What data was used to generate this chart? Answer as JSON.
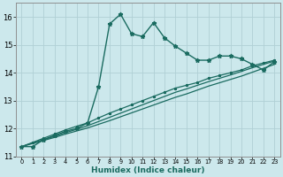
{
  "xlabel": "Humidex (Indice chaleur)",
  "bg_color": "#cce8ec",
  "grid_color": "#b0d0d5",
  "line_color": "#1a6b60",
  "xlim": [
    -0.5,
    23.5
  ],
  "ylim": [
    11,
    16.5
  ],
  "yticks": [
    11,
    12,
    13,
    14,
    15,
    16
  ],
  "xticks": [
    0,
    1,
    2,
    3,
    4,
    5,
    6,
    7,
    8,
    9,
    10,
    11,
    12,
    13,
    14,
    15,
    16,
    17,
    18,
    19,
    20,
    21,
    22,
    23
  ],
  "lines": [
    {
      "x": [
        0,
        1,
        2,
        3,
        4,
        5,
        6,
        7,
        8,
        9,
        10,
        11,
        12,
        13,
        14,
        15,
        16,
        17,
        18,
        19,
        20,
        21,
        22,
        23
      ],
      "y": [
        11.35,
        11.35,
        11.6,
        11.75,
        11.9,
        12.0,
        12.2,
        13.5,
        15.75,
        16.1,
        15.4,
        15.3,
        15.8,
        15.25,
        14.95,
        14.7,
        14.45,
        14.45,
        14.6,
        14.6,
        14.5,
        14.3,
        14.1,
        14.4
      ],
      "marker": "*",
      "markersize": 3.5,
      "lw": 1.0
    },
    {
      "x": [
        0,
        1,
        2,
        3,
        4,
        5,
        6,
        7,
        8,
        9,
        10,
        11,
        12,
        13,
        14,
        15,
        16,
        17,
        18,
        19,
        20,
        21,
        22,
        23
      ],
      "y": [
        11.35,
        11.5,
        11.65,
        11.8,
        11.95,
        12.08,
        12.2,
        12.38,
        12.55,
        12.7,
        12.85,
        13.0,
        13.15,
        13.3,
        13.45,
        13.55,
        13.65,
        13.8,
        13.9,
        14.0,
        14.1,
        14.25,
        14.35,
        14.45
      ],
      "marker": "*",
      "markersize": 2.0,
      "lw": 0.9
    },
    {
      "x": [
        0,
        1,
        2,
        3,
        4,
        5,
        6,
        7,
        8,
        9,
        10,
        11,
        12,
        13,
        14,
        15,
        16,
        17,
        18,
        19,
        20,
        21,
        22,
        23
      ],
      "y": [
        11.35,
        11.48,
        11.6,
        11.72,
        11.85,
        11.97,
        12.1,
        12.25,
        12.4,
        12.55,
        12.7,
        12.85,
        13.0,
        13.15,
        13.3,
        13.42,
        13.55,
        13.68,
        13.8,
        13.92,
        14.05,
        14.18,
        14.3,
        14.42
      ],
      "marker": null,
      "markersize": 0,
      "lw": 0.9
    },
    {
      "x": [
        0,
        1,
        2,
        3,
        4,
        5,
        6,
        7,
        8,
        9,
        10,
        11,
        12,
        13,
        14,
        15,
        16,
        17,
        18,
        19,
        20,
        21,
        22,
        23
      ],
      "y": [
        11.35,
        11.46,
        11.57,
        11.68,
        11.8,
        11.91,
        12.02,
        12.15,
        12.28,
        12.42,
        12.56,
        12.7,
        12.84,
        12.98,
        13.12,
        13.24,
        13.38,
        13.52,
        13.64,
        13.76,
        13.88,
        14.02,
        14.16,
        14.3
      ],
      "marker": null,
      "markersize": 0,
      "lw": 0.9
    }
  ]
}
